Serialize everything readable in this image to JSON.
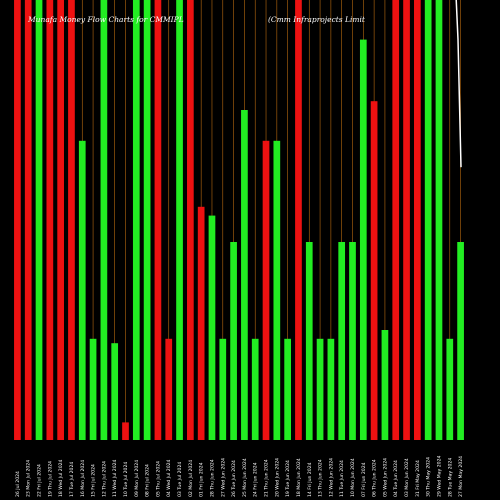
{
  "chart_data": {
    "type": "bar",
    "title_left": "Munafa Money Flow Charts for CMMIPL",
    "title_right": "(Cmm Infraprojects Limit",
    "ylim": [
      0,
      100
    ],
    "colors": {
      "up": "#22ee22",
      "down": "#ee1111",
      "grid": "#b86a10",
      "background": "#000000",
      "line": "#ffffff"
    },
    "categories": [
      "26 Jul 2024",
      "23 Mon Jul 2024",
      "22 Fri Jul 2024",
      "19 Thu Jul 2024",
      "18 Wed Jul 2024",
      "17 Tue Jul 2024",
      "16 Mon Jul 2024",
      "15 Fri Jul 2024",
      "12 Thu Jul 2024",
      "11 Wed Jul 2024",
      "10 Tue Jul 2024",
      "09 Mon Jul 2024",
      "08 Fri Jul 2024",
      "05 Thu Jul 2024",
      "04 Wed Jul 2024",
      "03 Tue Jul 2024",
      "02 Mon Jul 2024",
      "01 Fri Jun 2024",
      "28 Thu Jun 2024",
      "27 Wed Jun 2024",
      "26 Tue Jun 2024",
      "25 Mon Jun 2024",
      "24 Fri Jun 2024",
      "21 Thu Jun 2024",
      "20 Wed Jun 2024",
      "19 Tue Jun 2024",
      "18 Mon Jun 2024",
      "14 Fri Jun 2024",
      "13 Thu Jun 2024",
      "12 Wed Jun 2024",
      "11 Tue Jun 2024",
      "10 Mon Jun 2024",
      "07 Fri Jun 2024",
      "06 Thu Jun 2024",
      "05 Wed Jun 2024",
      "04 Tue Jun 2024",
      "03 Mon Jun 2024",
      "31 Fri May 2024",
      "30 Thu May 2024",
      "29 Wed May 2024",
      "28 Tue May 2024",
      "27 Mon May 2024"
    ],
    "values": [
      100,
      100,
      100,
      100,
      100,
      100,
      68,
      23,
      100,
      22,
      4,
      100,
      100,
      100,
      23,
      100,
      100,
      53,
      51,
      23,
      45,
      75,
      23,
      68,
      68,
      23,
      100,
      45,
      23,
      23,
      45,
      45,
      91,
      77,
      25,
      100,
      100,
      100,
      100,
      100,
      23,
      45
    ],
    "directions": [
      "down",
      "down",
      "green",
      "down",
      "down",
      "down",
      "green",
      "green",
      "green",
      "green",
      "down",
      "green",
      "green",
      "down",
      "down",
      "green",
      "down",
      "down",
      "green",
      "green",
      "green",
      "green",
      "green",
      "down",
      "green",
      "green",
      "down",
      "green",
      "green",
      "green",
      "green",
      "green",
      "green",
      "down",
      "green",
      "down",
      "down",
      "down",
      "green",
      "green",
      "green",
      "green"
    ],
    "line": {
      "points": [
        [
          0.3,
          100
        ],
        [
          0.4,
          91
        ],
        [
          0.45,
          62
        ]
      ]
    }
  }
}
